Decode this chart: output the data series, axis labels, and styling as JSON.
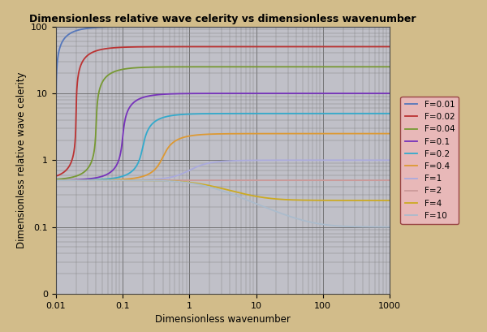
{
  "title": "Dimensionless relative wave celerity vs dimensionless wavenumber",
  "xlabel": "Dimensionless wavenumber",
  "ylabel": "Dimensionless relative wave celerity",
  "xlim": [
    0.01,
    1000
  ],
  "ylim": [
    0.01,
    100
  ],
  "froude_numbers": [
    0.01,
    0.02,
    0.04,
    0.1,
    0.2,
    0.4,
    1,
    2,
    4,
    10
  ],
  "colors": [
    "#5577bb",
    "#bb3333",
    "#779933",
    "#7733bb",
    "#33aacc",
    "#dd9933",
    "#aaaadd",
    "#cc9999",
    "#ccaa22",
    "#aabbcc"
  ],
  "labels": [
    "F=0.01",
    "F=0.02",
    "F=0.04",
    "F=0.1",
    "F=0.2",
    "F=0.4",
    "F=1",
    "F=2",
    "F=4",
    "F=10"
  ],
  "bg_outer": "#d2bc8a",
  "bg_plot": "#c0c0c8",
  "grid_major_color": "#666666",
  "grid_minor_color": "#888888",
  "legend_bg": "#e8b8b8",
  "legend_edge": "#994444",
  "linewidth": 1.3
}
